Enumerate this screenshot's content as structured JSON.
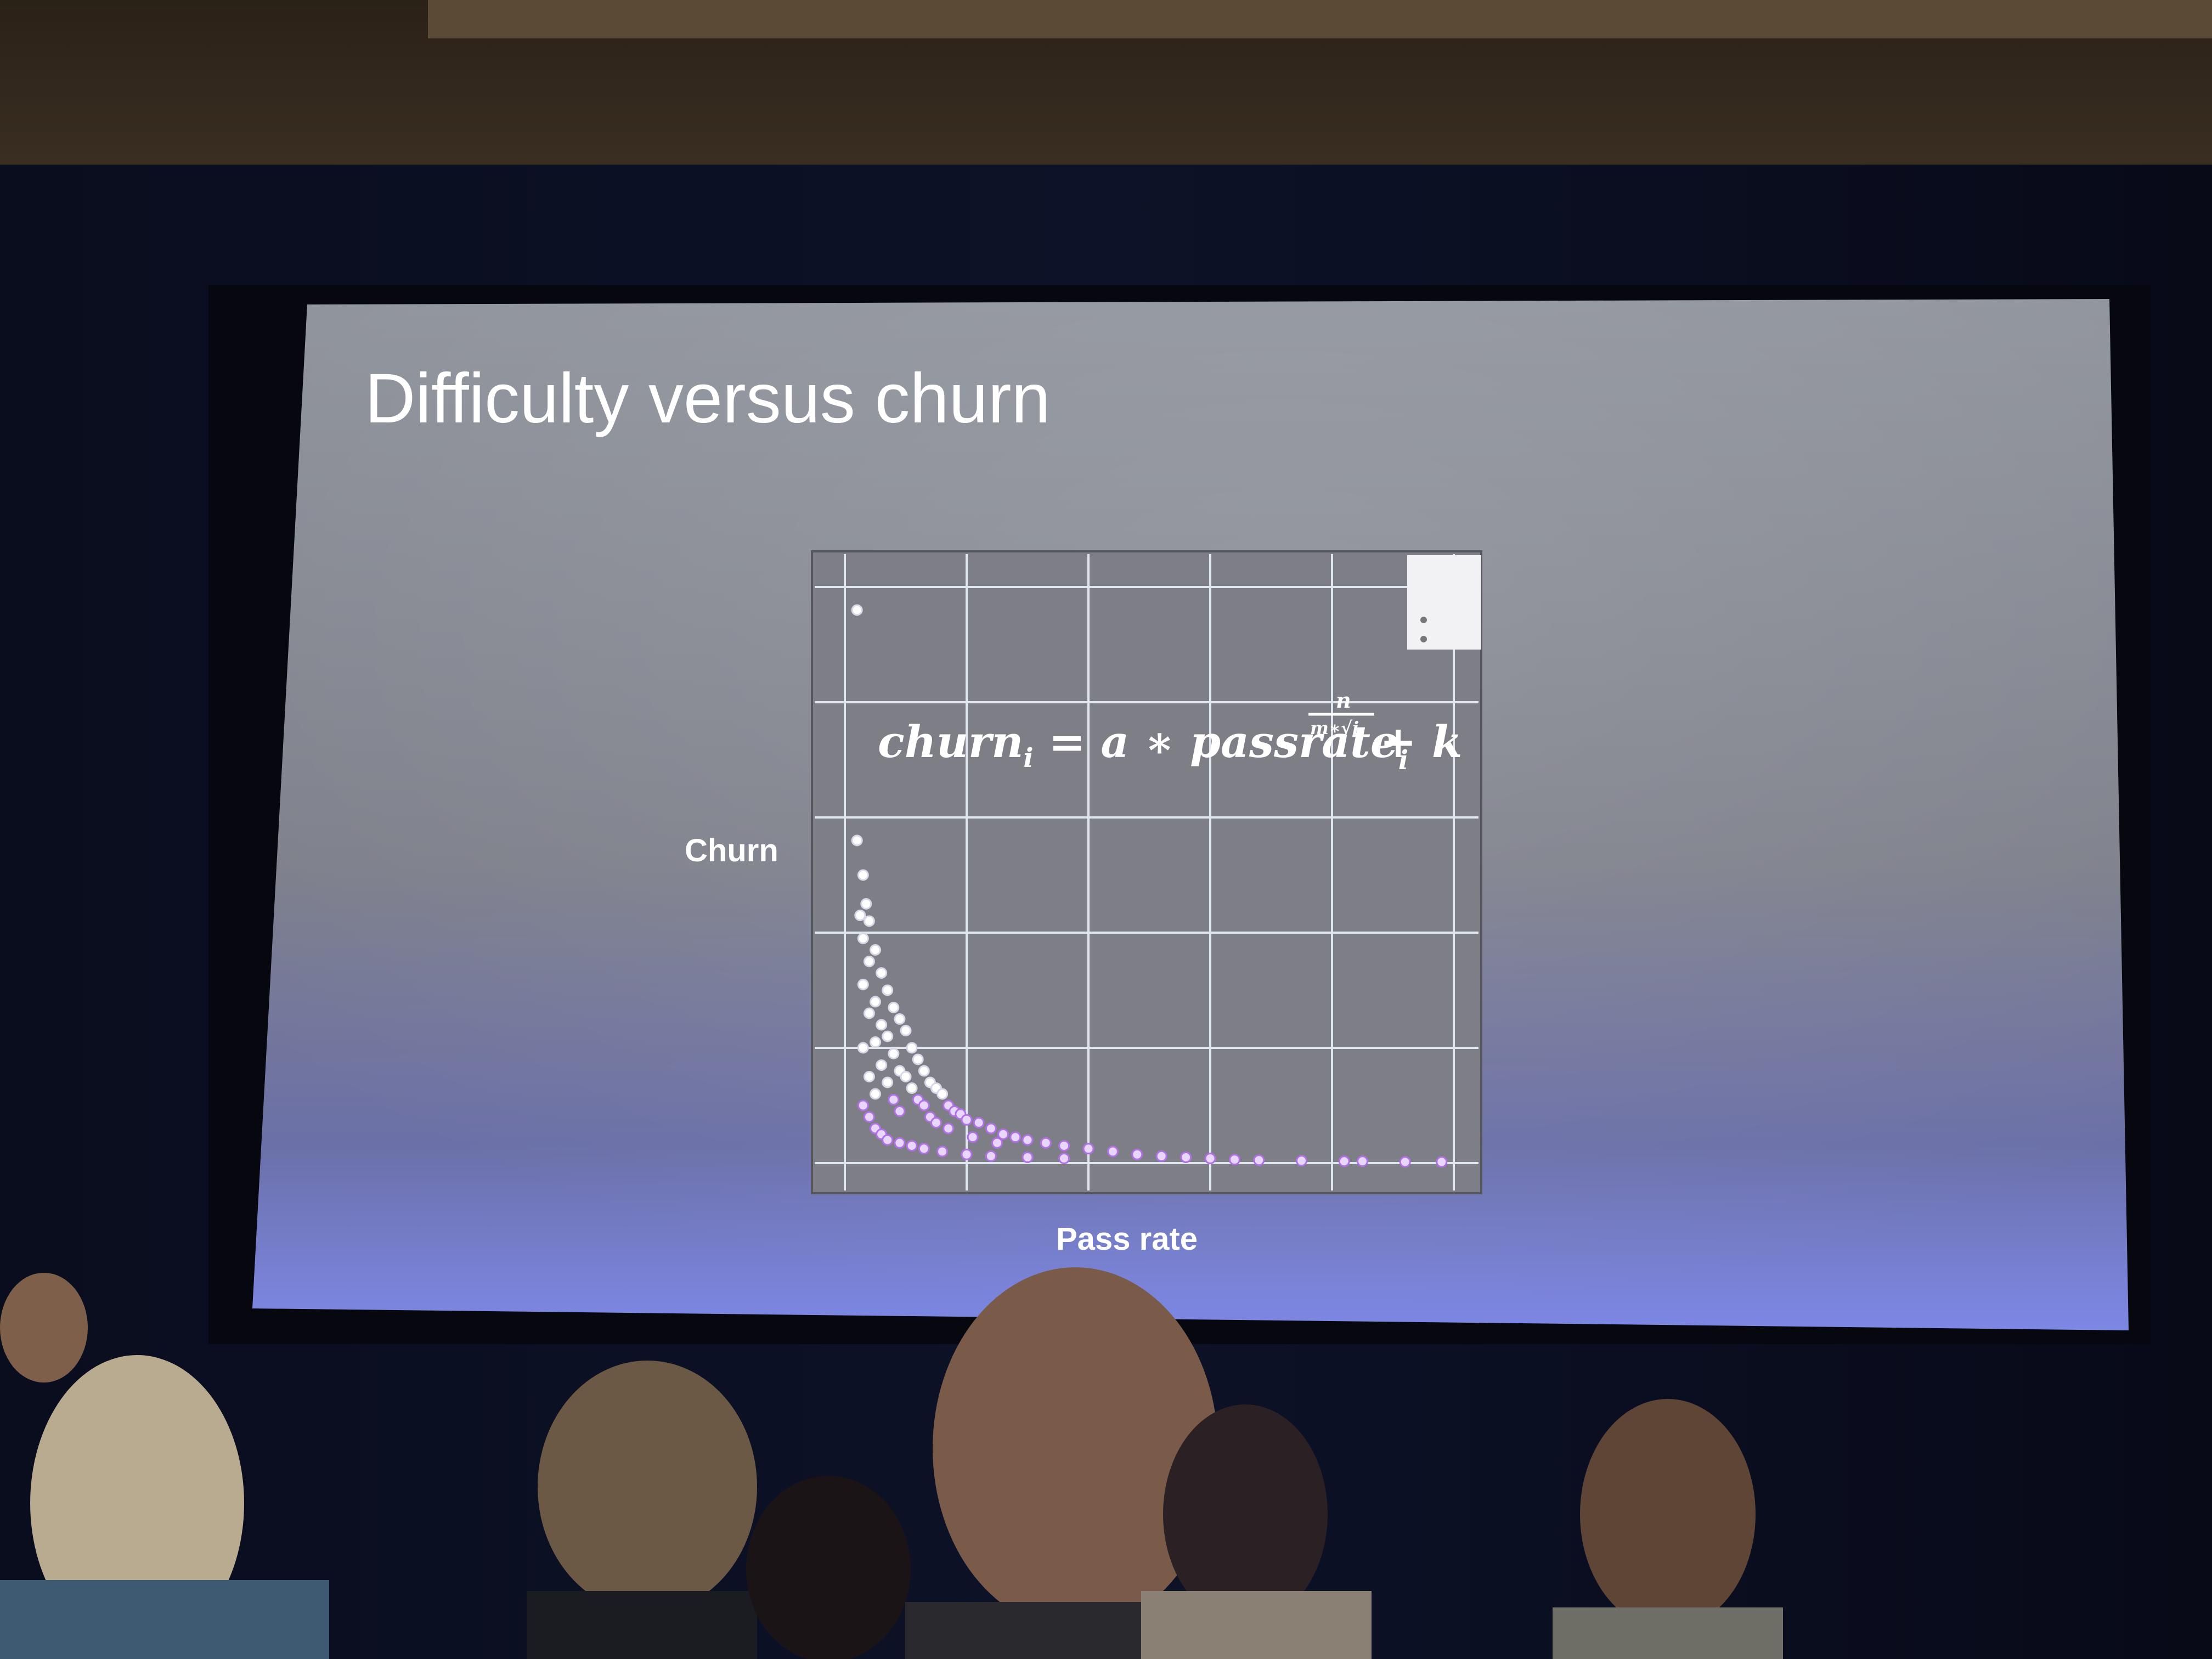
{
  "slide": {
    "title": "Difficulty versus churn"
  },
  "chart_data": {
    "type": "scatter",
    "title": "",
    "xlabel": "Pass rate",
    "ylabel": "Churn",
    "grid": true,
    "legend": "top-right",
    "xlim": [
      0,
      1
    ],
    "ylim": [
      0,
      1
    ],
    "annotation": {
      "lhs": "churn",
      "lhs_sub": "i",
      "mid": " = a ∗ passrate",
      "mid_sub": "i",
      "exp_num": "n",
      "exp_den": "m∗√i",
      "rhs": " + k"
    },
    "points": [
      [
        0.02,
        0.96
      ],
      [
        0.02,
        0.56
      ],
      [
        0.03,
        0.5
      ],
      [
        0.035,
        0.45
      ],
      [
        0.025,
        0.43
      ],
      [
        0.04,
        0.42
      ],
      [
        0.03,
        0.39
      ],
      [
        0.05,
        0.37
      ],
      [
        0.04,
        0.35
      ],
      [
        0.06,
        0.33
      ],
      [
        0.03,
        0.31
      ],
      [
        0.07,
        0.3
      ],
      [
        0.05,
        0.28
      ],
      [
        0.08,
        0.27
      ],
      [
        0.04,
        0.26
      ],
      [
        0.09,
        0.25
      ],
      [
        0.06,
        0.24
      ],
      [
        0.1,
        0.23
      ],
      [
        0.07,
        0.22
      ],
      [
        0.05,
        0.21
      ],
      [
        0.11,
        0.2
      ],
      [
        0.03,
        0.2
      ],
      [
        0.08,
        0.19
      ],
      [
        0.12,
        0.18
      ],
      [
        0.06,
        0.17
      ],
      [
        0.09,
        0.16
      ],
      [
        0.13,
        0.16
      ],
      [
        0.04,
        0.15
      ],
      [
        0.1,
        0.15
      ],
      [
        0.14,
        0.14
      ],
      [
        0.07,
        0.14
      ],
      [
        0.15,
        0.13
      ],
      [
        0.11,
        0.13
      ],
      [
        0.05,
        0.12
      ],
      [
        0.16,
        0.12
      ],
      [
        0.12,
        0.11
      ],
      [
        0.08,
        0.11
      ],
      [
        0.17,
        0.1
      ],
      [
        0.13,
        0.1
      ],
      [
        0.18,
        0.09
      ],
      [
        0.09,
        0.09
      ],
      [
        0.19,
        0.085
      ],
      [
        0.14,
        0.08
      ],
      [
        0.2,
        0.075
      ],
      [
        0.22,
        0.07
      ],
      [
        0.15,
        0.07
      ],
      [
        0.24,
        0.06
      ],
      [
        0.17,
        0.06
      ],
      [
        0.26,
        0.05
      ],
      [
        0.28,
        0.045
      ],
      [
        0.21,
        0.045
      ],
      [
        0.3,
        0.04
      ],
      [
        0.33,
        0.035
      ],
      [
        0.25,
        0.035
      ],
      [
        0.36,
        0.03
      ],
      [
        0.4,
        0.025
      ],
      [
        0.44,
        0.02
      ],
      [
        0.48,
        0.015
      ],
      [
        0.52,
        0.012
      ],
      [
        0.56,
        0.01
      ],
      [
        0.6,
        0.008
      ],
      [
        0.64,
        0.006
      ],
      [
        0.68,
        0.005
      ],
      [
        0.75,
        0.004
      ],
      [
        0.82,
        0.003
      ],
      [
        0.85,
        0.003
      ],
      [
        0.92,
        0.002
      ],
      [
        0.98,
        0.002
      ],
      [
        0.03,
        0.1
      ],
      [
        0.04,
        0.08
      ],
      [
        0.05,
        0.06
      ],
      [
        0.06,
        0.05
      ],
      [
        0.07,
        0.04
      ],
      [
        0.09,
        0.035
      ],
      [
        0.11,
        0.03
      ],
      [
        0.13,
        0.025
      ],
      [
        0.16,
        0.02
      ],
      [
        0.2,
        0.015
      ],
      [
        0.24,
        0.012
      ],
      [
        0.3,
        0.01
      ],
      [
        0.36,
        0.008
      ]
    ]
  }
}
